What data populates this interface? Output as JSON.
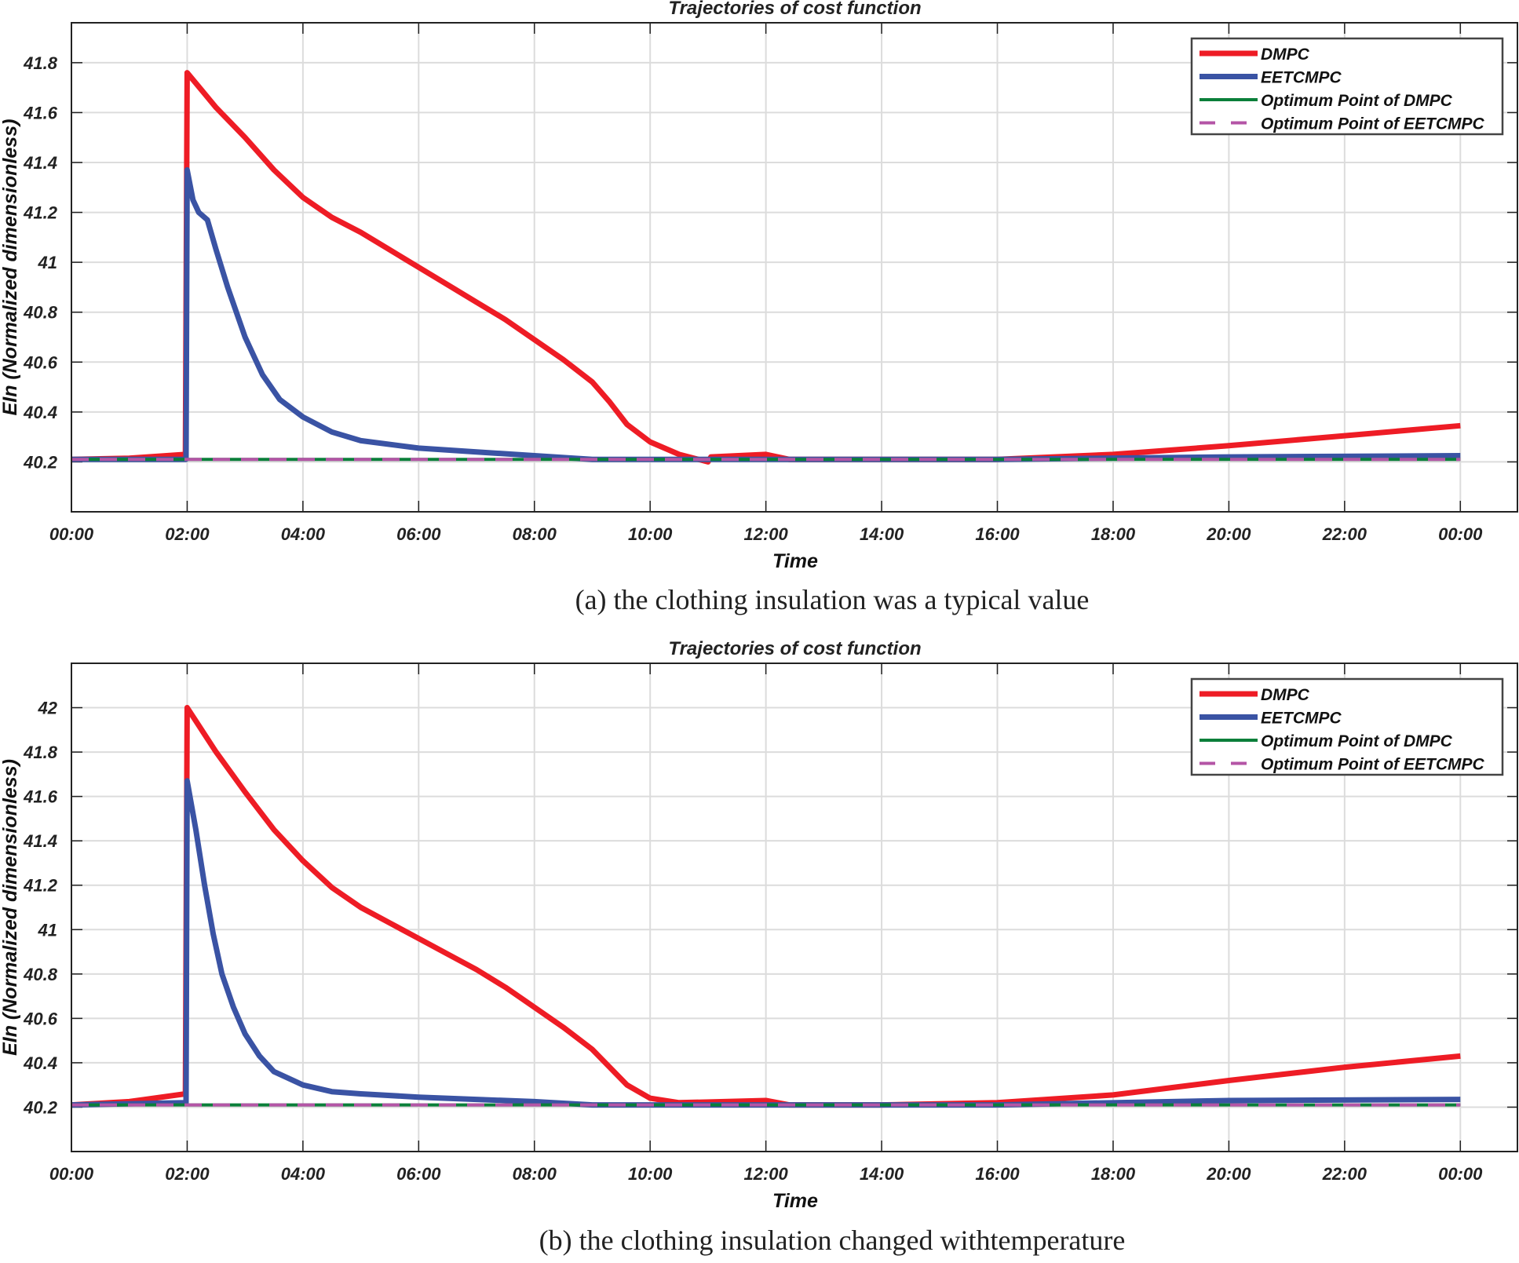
{
  "chart_data": [
    {
      "type": "line",
      "title": "Trajectories of cost function",
      "xlabel": "Time",
      "ylabel": "EIn (Normalized dimensionless)",
      "caption": "(a) the clothing insulation was a typical value",
      "xlim": [
        0,
        25
      ],
      "ylim": [
        40.0,
        41.96
      ],
      "xticks": [
        0,
        2,
        4,
        6,
        8,
        10,
        12,
        14,
        16,
        18,
        20,
        22,
        24
      ],
      "xtick_labels": [
        "00:00",
        "02:00",
        "04:00",
        "06:00",
        "08:00",
        "10:00",
        "12:00",
        "14:00",
        "16:00",
        "18:00",
        "20:00",
        "22:00",
        "00:00"
      ],
      "yticks": [
        40.2,
        40.4,
        40.6,
        40.8,
        41,
        41.2,
        41.4,
        41.6,
        41.8
      ],
      "ytick_labels": [
        "40.2",
        "40.4",
        "40.6",
        "40.8",
        "41",
        "41.2",
        "41.4",
        "41.6",
        "41.8"
      ],
      "grid": true,
      "legend_position": "top-right",
      "series": [
        {
          "name": "DMPC",
          "color": "#ee1c25",
          "style": "solid",
          "x": [
            0,
            1,
            1.97,
            2,
            2.5,
            3,
            3.5,
            4,
            4.5,
            5,
            5.5,
            6,
            6.5,
            7,
            7.5,
            8,
            8.5,
            9,
            9.3,
            9.6,
            10,
            10.5,
            11,
            11.05,
            12,
            12.4,
            14,
            16,
            18,
            20,
            22,
            24
          ],
          "y": [
            40.21,
            40.215,
            40.23,
            41.76,
            41.62,
            41.5,
            41.37,
            41.26,
            41.18,
            41.12,
            41.05,
            40.98,
            40.91,
            40.84,
            40.77,
            40.69,
            40.61,
            40.52,
            40.44,
            40.35,
            40.28,
            40.23,
            40.2,
            40.22,
            40.23,
            40.21,
            40.21,
            40.21,
            40.23,
            40.265,
            40.305,
            40.345
          ]
        },
        {
          "name": "EETCMPC",
          "color": "#3a53a4",
          "style": "solid",
          "x": [
            0,
            1.98,
            2,
            2.1,
            2.2,
            2.35,
            2.5,
            2.7,
            3,
            3.3,
            3.6,
            4,
            4.5,
            5,
            6,
            7,
            8,
            9,
            12,
            16,
            20,
            24
          ],
          "y": [
            40.21,
            40.21,
            41.37,
            41.25,
            41.2,
            41.17,
            41.05,
            40.9,
            40.7,
            40.55,
            40.45,
            40.38,
            40.32,
            40.285,
            40.255,
            40.24,
            40.225,
            40.21,
            40.21,
            40.21,
            40.22,
            40.225
          ]
        },
        {
          "name": "Optimum Point of DMPC",
          "color": "#0b7f3a",
          "style": "solid",
          "x": [
            0,
            24
          ],
          "y": [
            40.21,
            40.21
          ]
        },
        {
          "name": "Optimum Point of EETCMPC",
          "color": "#b455a6",
          "style": "dashed",
          "x": [
            0,
            24
          ],
          "y": [
            40.21,
            40.21
          ]
        }
      ]
    },
    {
      "type": "line",
      "title": "Trajectories of cost function",
      "xlabel": "Time",
      "ylabel": "EIn (Normalized dimensionless)",
      "caption": "(b) the clothing insulation changed withtemperature",
      "xlim": [
        0,
        25
      ],
      "ylim": [
        40.0,
        42.2
      ],
      "xticks": [
        0,
        2,
        4,
        6,
        8,
        10,
        12,
        14,
        16,
        18,
        20,
        22,
        24
      ],
      "xtick_labels": [
        "00:00",
        "02:00",
        "04:00",
        "06:00",
        "08:00",
        "10:00",
        "12:00",
        "14:00",
        "16:00",
        "18:00",
        "20:00",
        "22:00",
        "00:00"
      ],
      "yticks": [
        40.2,
        40.4,
        40.6,
        40.8,
        41,
        41.2,
        41.4,
        41.6,
        41.8,
        42
      ],
      "ytick_labels": [
        "40.2",
        "40.4",
        "40.6",
        "40.8",
        "41",
        "41.2",
        "41.4",
        "41.6",
        "41.8",
        "42"
      ],
      "grid": true,
      "legend_position": "top-right",
      "series": [
        {
          "name": "DMPC",
          "color": "#ee1c25",
          "style": "solid",
          "x": [
            0,
            1,
            1.97,
            2,
            2.5,
            3,
            3.5,
            4,
            4.5,
            5,
            5.5,
            6,
            6.5,
            7,
            7.5,
            8,
            8.5,
            9,
            9.3,
            9.6,
            10,
            10.5,
            12,
            12.4,
            14,
            16,
            18,
            20,
            22,
            24
          ],
          "y": [
            40.21,
            40.225,
            40.26,
            42.0,
            41.8,
            41.62,
            41.45,
            41.31,
            41.19,
            41.1,
            41.03,
            40.96,
            40.89,
            40.82,
            40.74,
            40.65,
            40.56,
            40.46,
            40.38,
            40.3,
            40.24,
            40.22,
            40.23,
            40.21,
            40.21,
            40.22,
            40.255,
            40.32,
            40.38,
            40.43
          ]
        },
        {
          "name": "EETCMPC",
          "color": "#3a53a4",
          "style": "solid",
          "x": [
            0,
            1.98,
            2,
            2.15,
            2.3,
            2.45,
            2.6,
            2.8,
            3,
            3.25,
            3.5,
            4,
            4.5,
            5,
            6,
            7,
            8,
            9,
            12,
            16,
            20,
            24
          ],
          "y": [
            40.21,
            40.22,
            41.67,
            41.45,
            41.2,
            40.98,
            40.8,
            40.65,
            40.53,
            40.43,
            40.36,
            40.3,
            40.27,
            40.26,
            40.245,
            40.235,
            40.225,
            40.21,
            40.21,
            40.21,
            40.23,
            40.235
          ]
        },
        {
          "name": "Optimum Point of DMPC",
          "color": "#0b7f3a",
          "style": "solid",
          "x": [
            0,
            24
          ],
          "y": [
            40.21,
            40.21
          ]
        },
        {
          "name": "Optimum Point of EETCMPC",
          "color": "#b455a6",
          "style": "dashed",
          "x": [
            0,
            24
          ],
          "y": [
            40.21,
            40.21
          ]
        }
      ]
    }
  ]
}
